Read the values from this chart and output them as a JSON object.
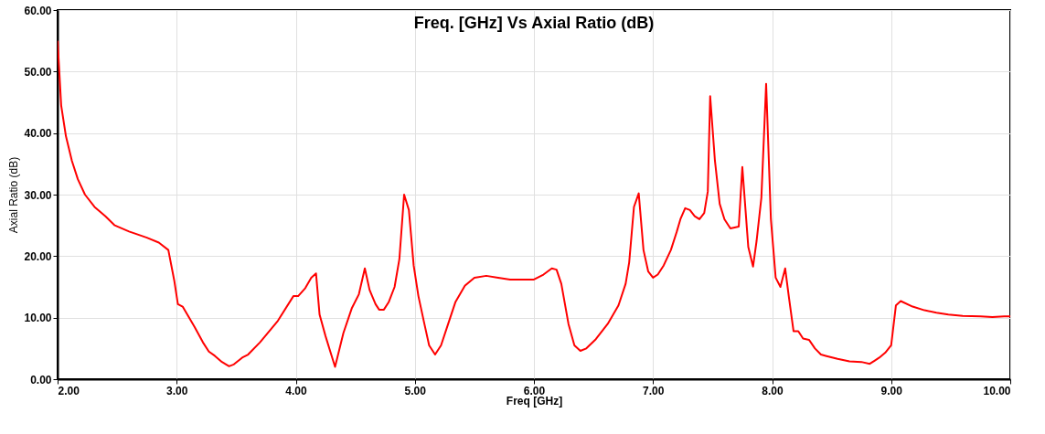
{
  "chart_data": {
    "type": "line",
    "title": "Freq. [GHz] Vs Axial Ratio (dB)",
    "xlabel": "Freq [GHz]",
    "ylabel": "Axial Ratio (dB)",
    "x": [
      2.0,
      2.03,
      2.07,
      2.12,
      2.17,
      2.23,
      2.31,
      2.4,
      2.48,
      2.6,
      2.75,
      2.85,
      2.93,
      2.98,
      3.01,
      3.05,
      3.15,
      3.22,
      3.27,
      3.32,
      3.38,
      3.44,
      3.48,
      3.55,
      3.6,
      3.7,
      3.85,
      3.98,
      4.02,
      4.08,
      4.13,
      4.17,
      4.2,
      4.25,
      4.29,
      4.33,
      4.4,
      4.47,
      4.53,
      4.58,
      4.62,
      4.67,
      4.7,
      4.74,
      4.78,
      4.83,
      4.87,
      4.91,
      4.95,
      4.99,
      5.03,
      5.08,
      5.12,
      5.17,
      5.22,
      5.28,
      5.34,
      5.42,
      5.5,
      5.6,
      5.7,
      5.8,
      5.92,
      6.0,
      6.08,
      6.15,
      6.19,
      6.23,
      6.29,
      6.34,
      6.39,
      6.44,
      6.52,
      6.62,
      6.71,
      6.77,
      6.8,
      6.84,
      6.88,
      6.92,
      6.96,
      7.0,
      7.04,
      7.09,
      7.15,
      7.2,
      7.23,
      7.27,
      7.31,
      7.35,
      7.39,
      7.43,
      7.46,
      7.48,
      7.52,
      7.56,
      7.6,
      7.65,
      7.72,
      7.75,
      7.8,
      7.84,
      7.87,
      7.91,
      7.95,
      7.99,
      8.03,
      8.07,
      8.11,
      8.14,
      8.18,
      8.22,
      8.26,
      8.31,
      8.36,
      8.41,
      8.45,
      8.55,
      8.65,
      8.75,
      8.82,
      8.86,
      8.9,
      8.95,
      9.0,
      9.04,
      9.08,
      9.18,
      9.28,
      9.38,
      9.48,
      9.6,
      9.75,
      9.85,
      9.95,
      10.0
    ],
    "series": [
      {
        "color": "#ff0000",
        "values": [
          55,
          44.5,
          39.5,
          35.5,
          32.5,
          30,
          28,
          26.5,
          25,
          24,
          23,
          22.2,
          21,
          16,
          12.2,
          11.8,
          8.5,
          6,
          4.5,
          3.8,
          2.8,
          2.1,
          2.4,
          3.5,
          4,
          6,
          9.5,
          13.5,
          13.5,
          14.8,
          16.5,
          17.2,
          10.5,
          7,
          4.5,
          2,
          7.5,
          11.5,
          13.8,
          18,
          14.5,
          12.2,
          11.3,
          11.3,
          12.5,
          15,
          19.5,
          30,
          27.5,
          18.5,
          13.5,
          9,
          5.5,
          4,
          5.5,
          9,
          12.5,
          15.2,
          16.5,
          16.8,
          16.5,
          16.2,
          16.2,
          16.2,
          17,
          18,
          17.8,
          15.5,
          9,
          5.5,
          4.6,
          5,
          6.5,
          9,
          12,
          15.5,
          19,
          28,
          30.2,
          21,
          17.5,
          16.5,
          17,
          18.5,
          21,
          24,
          26,
          27.8,
          27.5,
          26.5,
          26,
          27,
          30.5,
          46,
          35.5,
          28.5,
          26,
          24.5,
          24.8,
          34.5,
          21.5,
          18.3,
          22.5,
          29.5,
          48,
          26,
          16.5,
          15,
          18,
          13.5,
          7.8,
          7.8,
          6.6,
          6.4,
          5,
          4,
          3.8,
          3.3,
          2.9,
          2.8,
          2.5,
          3,
          3.5,
          4.3,
          5.5,
          12,
          12.7,
          11.8,
          11.2,
          10.8,
          10.5,
          10.3,
          10.2,
          10.1,
          10.2,
          10.2
        ]
      }
    ],
    "xlim": [
      2,
      10
    ],
    "ylim": [
      0,
      60
    ],
    "xticks": [
      {
        "value": 2,
        "label": "2.00"
      },
      {
        "value": 3,
        "label": "3.00"
      },
      {
        "value": 4,
        "label": "4.00"
      },
      {
        "value": 5,
        "label": "5.00"
      },
      {
        "value": 6,
        "label": "6.00"
      },
      {
        "value": 7,
        "label": "7.00"
      },
      {
        "value": 8,
        "label": "8.00"
      },
      {
        "value": 9,
        "label": "9.00"
      },
      {
        "value": 10,
        "label": "10.00"
      }
    ],
    "yticks": [
      {
        "value": 0,
        "label": "0.00"
      },
      {
        "value": 10,
        "label": "10.00"
      },
      {
        "value": 20,
        "label": "20.00"
      },
      {
        "value": 30,
        "label": "30.00"
      },
      {
        "value": 40,
        "label": "40.00"
      },
      {
        "value": 50,
        "label": "50.00"
      },
      {
        "value": 60,
        "label": "60.00"
      }
    ],
    "grid": true,
    "line_style": "solid"
  }
}
